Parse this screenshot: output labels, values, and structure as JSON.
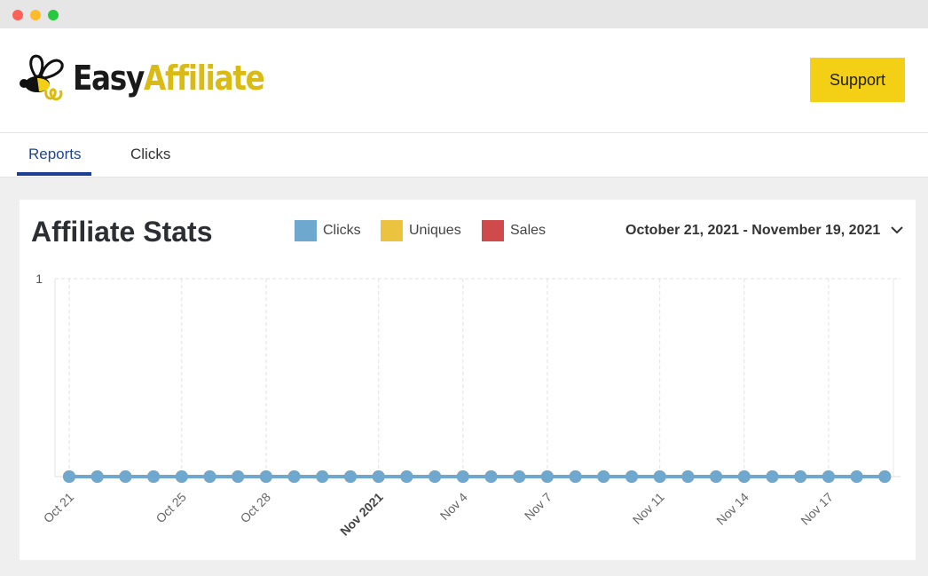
{
  "window": {
    "controls": [
      "close",
      "minimize",
      "maximize"
    ]
  },
  "header": {
    "logo": {
      "part1": "Easy",
      "part2": "Affiliate",
      "icon": "bee-icon"
    },
    "support_label": "Support"
  },
  "tabs": [
    {
      "label": "Reports",
      "active": true
    },
    {
      "label": "Clicks",
      "active": false
    }
  ],
  "stats": {
    "title": "Affiliate Stats",
    "legend": [
      {
        "label": "Clicks",
        "color": "#6fa8cf"
      },
      {
        "label": "Uniques",
        "color": "#ecc33f"
      },
      {
        "label": "Sales",
        "color": "#cf4a4a"
      }
    ],
    "date_range": "October 21, 2021 - November 19, 2021"
  },
  "chart_data": {
    "type": "line",
    "title": "",
    "xlabel": "",
    "ylabel": "",
    "ylim": [
      0,
      1
    ],
    "y_ticks": [
      "1"
    ],
    "x": [
      "2021-10-21",
      "2021-10-22",
      "2021-10-23",
      "2021-10-24",
      "2021-10-25",
      "2021-10-26",
      "2021-10-27",
      "2021-10-28",
      "2021-10-29",
      "2021-10-30",
      "2021-10-31",
      "2021-11-01",
      "2021-11-02",
      "2021-11-03",
      "2021-11-04",
      "2021-11-05",
      "2021-11-06",
      "2021-11-07",
      "2021-11-08",
      "2021-11-09",
      "2021-11-10",
      "2021-11-11",
      "2021-11-12",
      "2021-11-13",
      "2021-11-14",
      "2021-11-15",
      "2021-11-16",
      "2021-11-17",
      "2021-11-18",
      "2021-11-19"
    ],
    "x_tick_labels": [
      {
        "label": "Oct 21",
        "date": "2021-10-21",
        "bold": false
      },
      {
        "label": "Oct 25",
        "date": "2021-10-25",
        "bold": false
      },
      {
        "label": "Oct 28",
        "date": "2021-10-28",
        "bold": false
      },
      {
        "label": "Nov 2021",
        "date": "2021-11-01",
        "bold": true
      },
      {
        "label": "Nov 4",
        "date": "2021-11-04",
        "bold": false
      },
      {
        "label": "Nov 7",
        "date": "2021-11-07",
        "bold": false
      },
      {
        "label": "Nov 11",
        "date": "2021-11-11",
        "bold": false
      },
      {
        "label": "Nov 14",
        "date": "2021-11-14",
        "bold": false
      },
      {
        "label": "Nov 17",
        "date": "2021-11-17",
        "bold": false
      }
    ],
    "series": [
      {
        "name": "Clicks",
        "color": "#6fa8cf",
        "values": [
          0,
          0,
          0,
          0,
          0,
          0,
          0,
          0,
          0,
          0,
          0,
          0,
          0,
          0,
          0,
          0,
          0,
          0,
          0,
          0,
          0,
          0,
          0,
          0,
          0,
          0,
          0,
          0,
          0,
          0
        ]
      },
      {
        "name": "Uniques",
        "color": "#ecc33f",
        "values": [
          0,
          0,
          0,
          0,
          0,
          0,
          0,
          0,
          0,
          0,
          0,
          0,
          0,
          0,
          0,
          0,
          0,
          0,
          0,
          0,
          0,
          0,
          0,
          0,
          0,
          0,
          0,
          0,
          0,
          0
        ]
      },
      {
        "name": "Sales",
        "color": "#cf4a4a",
        "values": [
          0,
          0,
          0,
          0,
          0,
          0,
          0,
          0,
          0,
          0,
          0,
          0,
          0,
          0,
          0,
          0,
          0,
          0,
          0,
          0,
          0,
          0,
          0,
          0,
          0,
          0,
          0,
          0,
          0,
          0
        ]
      }
    ],
    "grid": true,
    "legend_position": "top"
  }
}
